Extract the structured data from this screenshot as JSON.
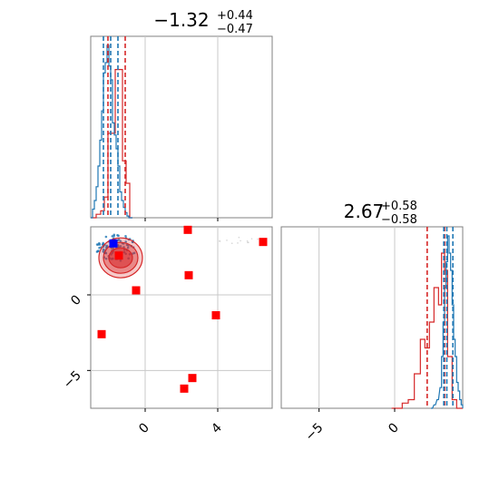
{
  "chart_data": [
    {
      "type": "histogram",
      "panel": "top-left",
      "title": {
        "main": "−1.32",
        "sup": "+0.44",
        "sub": "−0.47"
      },
      "xlim": [
        -3.0,
        7.0
      ],
      "grid": true,
      "red_quantile_lines": [
        -2.05,
        -1.1
      ],
      "blue_quantile_lines": [
        -2.3,
        -1.9,
        -1.5
      ],
      "red_hist": {
        "edges": [
          -3.0,
          -2.7,
          -2.45,
          -2.25,
          -2.05,
          -1.85,
          -1.65,
          -1.45,
          -1.25,
          -1.05,
          -0.85,
          -0.7
        ],
        "heights": [
          0.0,
          0.02,
          0.04,
          0.12,
          0.49,
          0.49,
          0.86,
          0.86,
          0.33,
          0.2,
          0.0
        ]
      },
      "blue_hist": {
        "x": [
          -3.0,
          -2.9,
          -2.8,
          -2.7,
          -2.6,
          -2.5,
          -2.4,
          -2.3,
          -2.2,
          -2.1,
          -2.0,
          -1.9,
          -1.8,
          -1.7,
          -1.6,
          -1.5,
          -1.4,
          -1.3,
          -1.2,
          -1.1,
          -1.0,
          -0.9,
          -0.8
        ],
        "heights": [
          0.0,
          0.05,
          0.1,
          0.18,
          0.3,
          0.45,
          0.62,
          0.84,
          0.9,
          1.0,
          0.88,
          0.8,
          0.55,
          0.48,
          0.4,
          0.3,
          0.15,
          0.1,
          0.06,
          0.03,
          0.01,
          0.0,
          0.0
        ]
      }
    },
    {
      "type": "scatter",
      "panel": "bottom-left",
      "xlim": [
        -3.0,
        7.0
      ],
      "ylim": [
        -7.5,
        4.5
      ],
      "x_ticks": [
        0,
        4
      ],
      "y_ticks": [
        0,
        -5
      ],
      "grid": true,
      "red_points": [
        {
          "x": -2.4,
          "y": -2.6
        },
        {
          "x": -1.45,
          "y": 2.6
        },
        {
          "x": -0.5,
          "y": 0.3
        },
        {
          "x": 2.35,
          "y": 4.3
        },
        {
          "x": 2.4,
          "y": 1.3
        },
        {
          "x": 6.5,
          "y": 3.5
        },
        {
          "x": 3.9,
          "y": -1.35
        },
        {
          "x": 2.6,
          "y": -5.5
        },
        {
          "x": 2.15,
          "y": -6.2
        }
      ],
      "blue_point": {
        "x": -1.75,
        "y": 3.4
      },
      "red_contour_center": {
        "x": -1.35,
        "y": 2.45
      }
    },
    {
      "type": "histogram",
      "panel": "bottom-right",
      "title": {
        "main": "2.67",
        "sup": "+0.58",
        "sub": "−0.58"
      },
      "xlim": [
        -7.5,
        4.5
      ],
      "x_ticks": [
        -5,
        0
      ],
      "grid": true,
      "red_quantile_lines": [
        2.15,
        3.3
      ],
      "blue_quantile_lines": [
        3.25,
        3.45,
        3.85
      ],
      "red_hist": {
        "edges": [
          -0.2,
          0.5,
          0.9,
          1.3,
          1.7,
          2.0,
          2.3,
          2.6,
          2.9,
          3.1,
          3.3,
          3.5,
          3.8,
          4.1,
          4.5
        ],
        "heights": [
          0.0,
          0.03,
          0.05,
          0.2,
          0.4,
          0.35,
          0.5,
          0.7,
          0.6,
          0.9,
          0.8,
          0.3,
          0.05,
          0.0
        ]
      },
      "blue_hist": {
        "x": [
          2.4,
          2.6,
          2.8,
          3.0,
          3.1,
          3.2,
          3.3,
          3.4,
          3.5,
          3.6,
          3.7,
          3.8,
          3.9,
          4.0,
          4.1,
          4.2,
          4.3,
          4.4,
          4.5
        ],
        "heights": [
          0.0,
          0.02,
          0.05,
          0.12,
          0.3,
          0.5,
          0.7,
          0.85,
          1.0,
          0.9,
          0.8,
          0.6,
          0.4,
          0.3,
          0.15,
          0.1,
          0.05,
          0.02,
          0.0
        ]
      }
    }
  ],
  "colors": {
    "red": "#d62728",
    "blue": "#1f77b4",
    "marker_red": "#ff0000",
    "marker_blue": "#0000ff",
    "grid": "#c8c8c8",
    "frame": "#808080"
  }
}
